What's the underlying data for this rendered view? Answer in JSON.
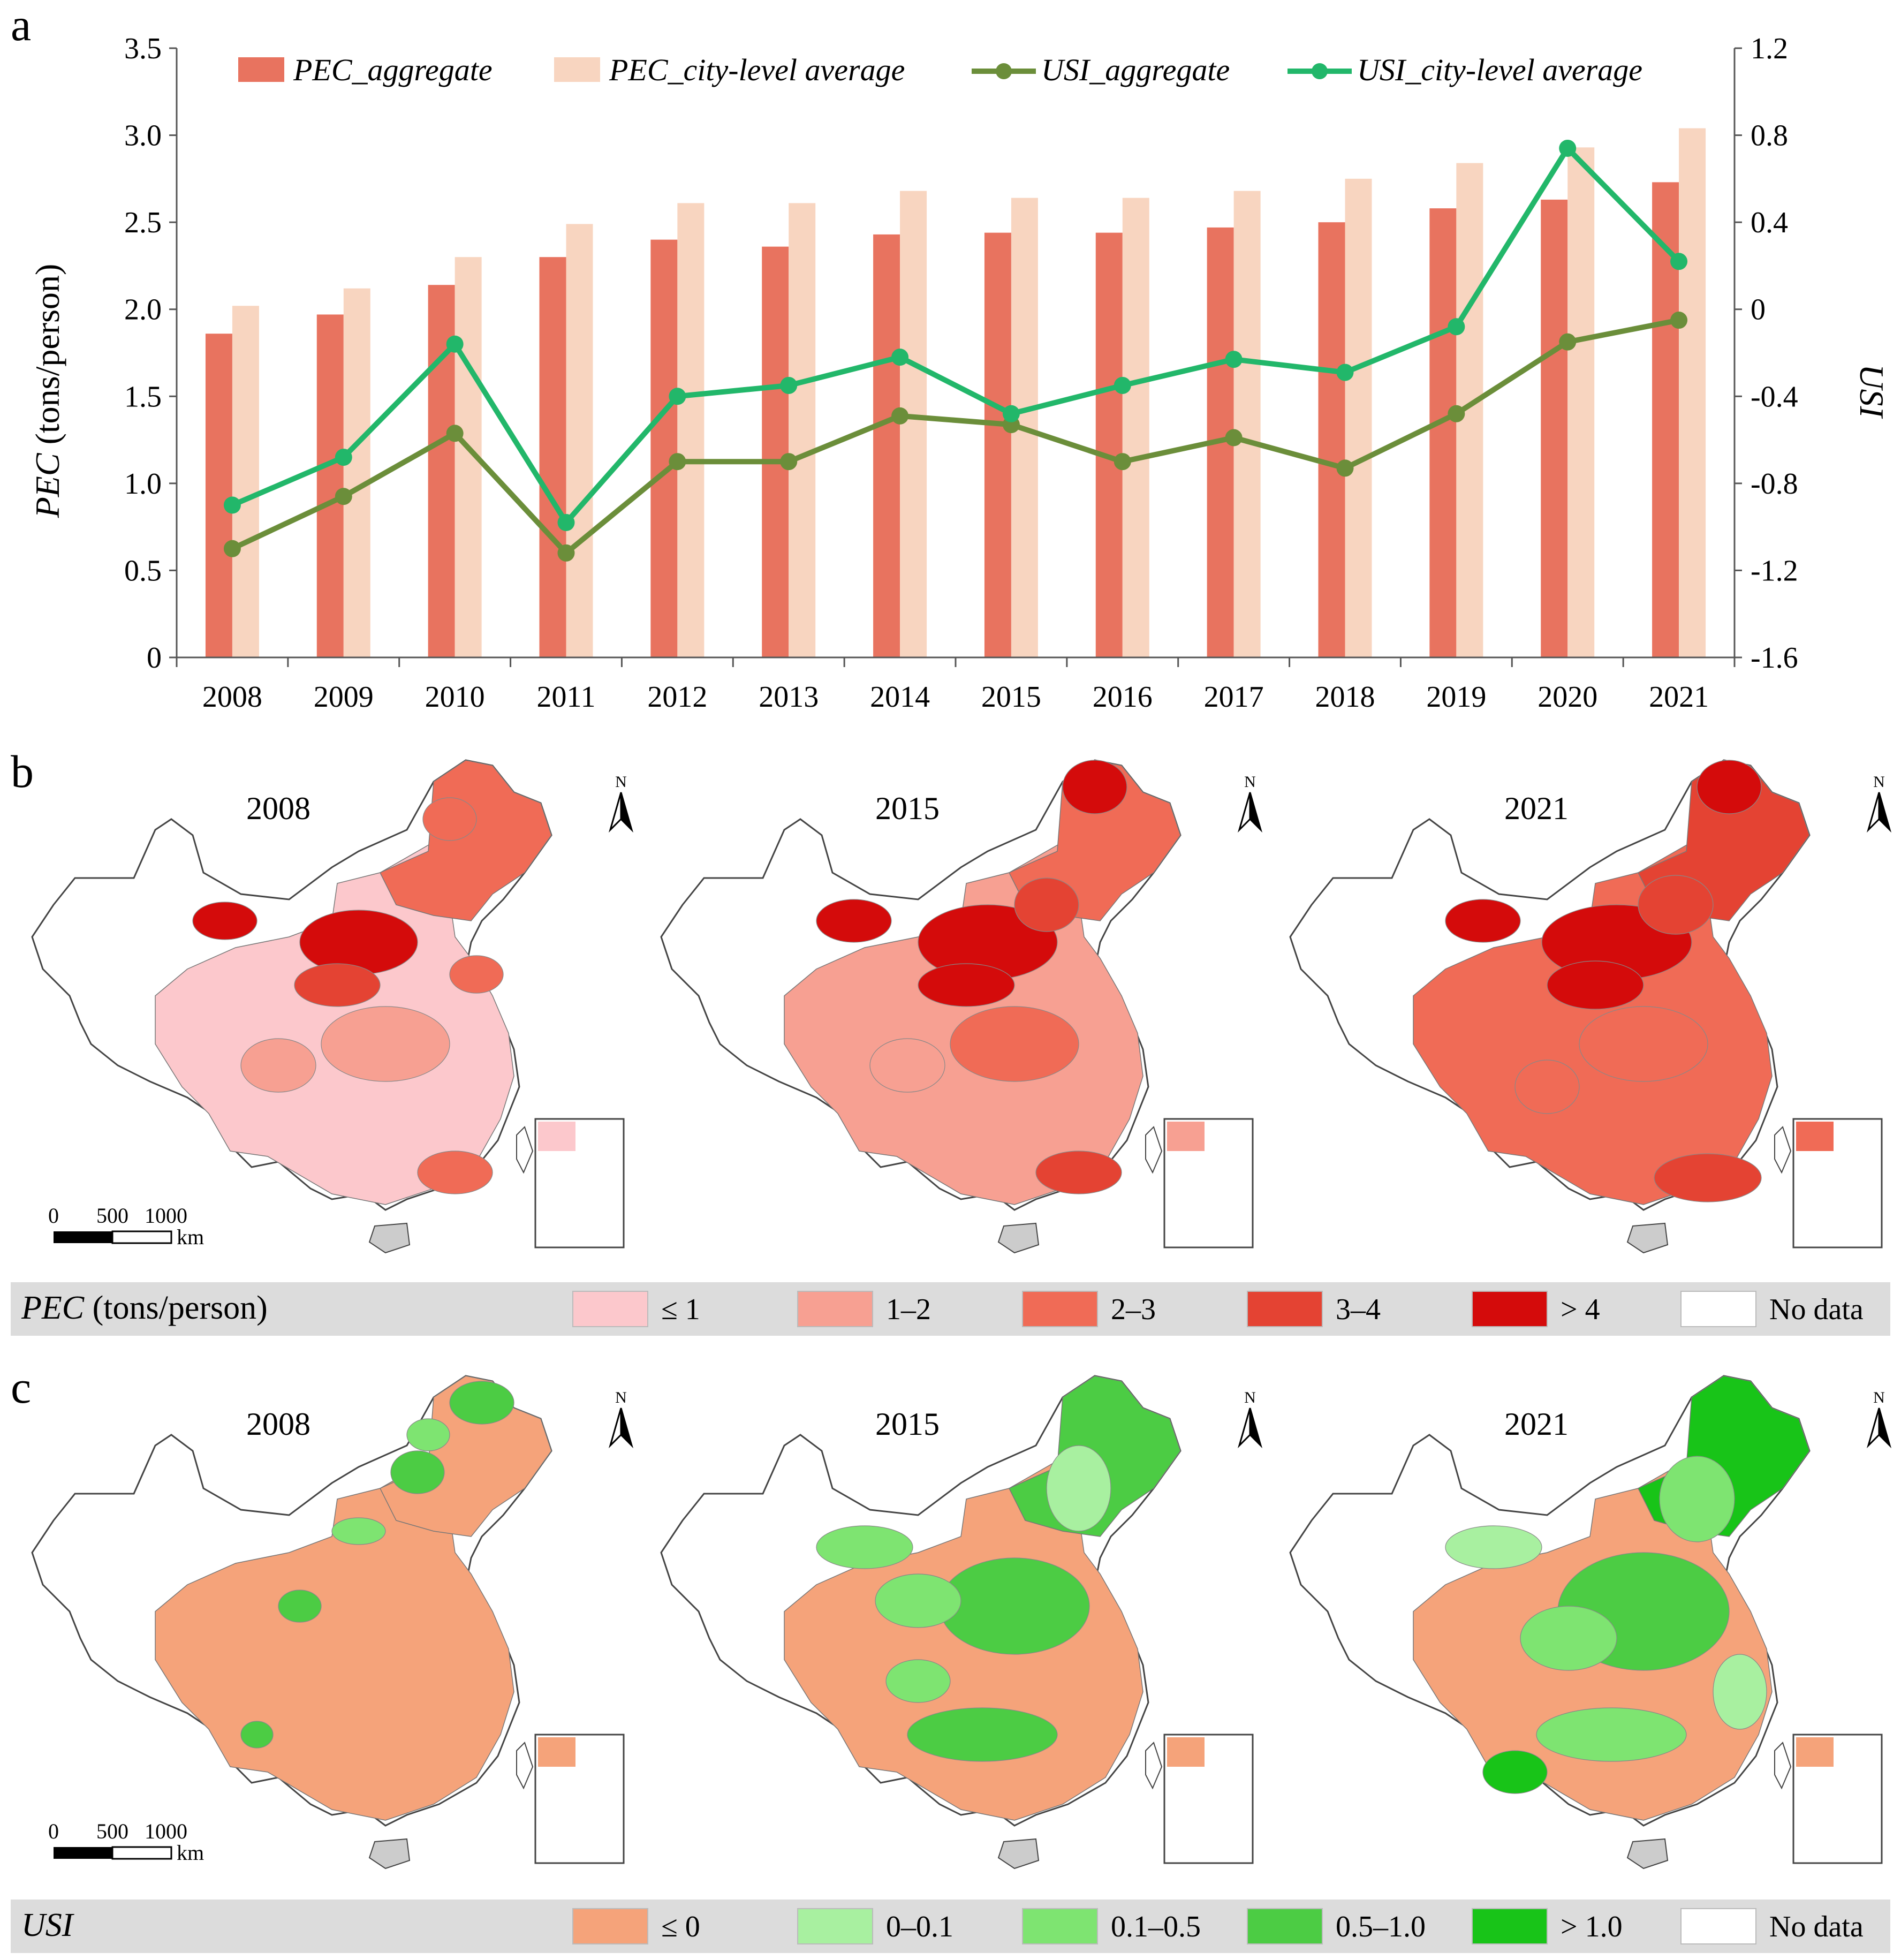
{
  "panels": {
    "a": {
      "label": "a"
    },
    "b": {
      "label": "b"
    },
    "c": {
      "label": "c"
    }
  },
  "chart_data": {
    "type": "bar",
    "categories": [
      "2008",
      "2009",
      "2010",
      "2011",
      "2012",
      "2013",
      "2014",
      "2015",
      "2016",
      "2017",
      "2018",
      "2019",
      "2020",
      "2021"
    ],
    "series": [
      {
        "name": "PEC_aggregate",
        "kind": "bar",
        "axis": "left",
        "color": "#e8735f",
        "values": [
          1.86,
          1.97,
          2.14,
          2.3,
          2.4,
          2.36,
          2.43,
          2.44,
          2.44,
          2.47,
          2.5,
          2.58,
          2.63,
          2.73
        ]
      },
      {
        "name": "PEC_city-level average",
        "kind": "bar",
        "axis": "left",
        "color": "#f8d5c0",
        "values": [
          2.02,
          2.12,
          2.3,
          2.49,
          2.61,
          2.61,
          2.68,
          2.64,
          2.64,
          2.68,
          2.75,
          2.84,
          2.93,
          3.04
        ]
      },
      {
        "name": "USI_aggregate",
        "kind": "line",
        "axis": "right",
        "color": "#6b8e3a",
        "values": [
          -1.1,
          -0.86,
          -0.57,
          -1.12,
          -0.7,
          -0.7,
          -0.49,
          -0.53,
          -0.7,
          -0.59,
          -0.73,
          -0.48,
          -0.15,
          -0.05
        ]
      },
      {
        "name": "USI_city-level average",
        "kind": "line",
        "axis": "right",
        "color": "#22b76a",
        "values": [
          -0.9,
          -0.68,
          -0.16,
          -0.98,
          -0.4,
          -0.35,
          -0.22,
          -0.48,
          -0.35,
          -0.23,
          -0.29,
          -0.08,
          0.74,
          0.22
        ]
      }
    ],
    "ylabel": {
      "italic": "PEC",
      "rest": " (tons/person)"
    },
    "y2label": "USI",
    "ylim": [
      0,
      3.5
    ],
    "y2lim": [
      -1.6,
      1.2
    ],
    "yticks": [
      "0",
      "0.5",
      "1.0",
      "1.5",
      "2.0",
      "2.5",
      "3.0",
      "3.5"
    ],
    "y2ticks": [
      "-1.6",
      "-1.2",
      "-0.8",
      "-0.4",
      "0",
      "0.4",
      "0.8",
      "1.2"
    ],
    "legend_position": "top"
  },
  "maps": {
    "years": [
      "2008",
      "2015",
      "2021"
    ],
    "north_label": "N",
    "scale": {
      "labels": [
        "0",
        "500",
        "1000"
      ],
      "unit": "km"
    },
    "pec_legend": {
      "title_italic": "PEC",
      "title_rest": " (tons/person)",
      "items": [
        {
          "label": "≤ 1",
          "color": "#fcc8cc"
        },
        {
          "label": "1–2",
          "color": "#f7a092"
        },
        {
          "label": "2–3",
          "color": "#f06b56"
        },
        {
          "label": "3–4",
          "color": "#e44333"
        },
        {
          "label": "> 4",
          "color": "#d40b0b"
        },
        {
          "label": "No data",
          "color": "#ffffff"
        }
      ]
    },
    "usi_legend": {
      "title_italic": "USI",
      "items": [
        {
          "label": "≤ 0",
          "color": "#f5a37a"
        },
        {
          "label": "0–0.1",
          "color": "#a8f0a0"
        },
        {
          "label": "0.1–0.5",
          "color": "#7ee471"
        },
        {
          "label": "0.5–1.0",
          "color": "#4ccc44"
        },
        {
          "label": "> 1.0",
          "color": "#18c418"
        },
        {
          "label": "No data",
          "color": "#ffffff"
        }
      ]
    }
  }
}
